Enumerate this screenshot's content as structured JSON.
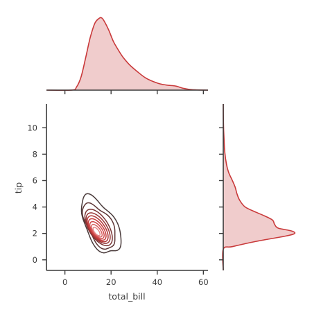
{
  "chart_data": {
    "type": "jointplot-kde",
    "xlabel": "total_bill",
    "ylabel": "tip",
    "xlim": [
      -8,
      62
    ],
    "ylim": [
      -0.8,
      11.8
    ],
    "x_ticks": [
      "0",
      "20",
      "40",
      "60"
    ],
    "y_ticks": [
      "0",
      "2",
      "4",
      "6",
      "8",
      "10"
    ],
    "colors": {
      "line": "#c9393a",
      "fill": "#f0cccc",
      "outer": "#5a3a3a",
      "axis": "#3a3a3a"
    },
    "joint": {
      "kind": "kde-contour",
      "levels": [
        {
          "level": 1,
          "cx": 15.5,
          "cy": 2.6,
          "rx": 10.5,
          "ry": 1.25,
          "angle": 28,
          "color": "#4a3b3b"
        },
        {
          "level": 2,
          "cx": 15.0,
          "cy": 2.55,
          "rx": 8.4,
          "ry": 1.0,
          "angle": 30,
          "color": "#5e3636"
        },
        {
          "level": 3,
          "cx": 14.6,
          "cy": 2.45,
          "rx": 6.9,
          "ry": 0.82,
          "angle": 32,
          "color": "#7b3636"
        },
        {
          "level": 4,
          "cx": 14.4,
          "cy": 2.4,
          "rx": 5.9,
          "ry": 0.7,
          "angle": 34,
          "color": "#983535"
        },
        {
          "level": 5,
          "cx": 14.2,
          "cy": 2.35,
          "rx": 5.0,
          "ry": 0.6,
          "angle": 35,
          "color": "#b23535"
        },
        {
          "level": 6,
          "cx": 14.0,
          "cy": 2.3,
          "rx": 4.2,
          "ry": 0.5,
          "angle": 36,
          "color": "#c53c3c"
        },
        {
          "level": 7,
          "cx": 13.9,
          "cy": 2.25,
          "rx": 3.3,
          "ry": 0.4,
          "angle": 37,
          "color": "#d04848"
        },
        {
          "level": 8,
          "cx": 13.8,
          "cy": 2.2,
          "rx": 2.4,
          "ry": 0.3,
          "angle": 38,
          "color": "#d96262"
        },
        {
          "level": 9,
          "cx": 13.7,
          "cy": 2.15,
          "rx": 1.5,
          "ry": 0.2,
          "angle": 38,
          "color": "#e48888"
        }
      ]
    },
    "marginal_x": {
      "x": [
        -8,
        3,
        5,
        7,
        9,
        11,
        13,
        15,
        16,
        17,
        19,
        21,
        23,
        25,
        28,
        31,
        35,
        40,
        44,
        48,
        51,
        55,
        62
      ],
      "density": [
        0,
        0.0001,
        0.003,
        0.013,
        0.032,
        0.052,
        0.066,
        0.071,
        0.071,
        0.068,
        0.059,
        0.048,
        0.04,
        0.033,
        0.025,
        0.019,
        0.012,
        0.007,
        0.005,
        0.004,
        0.002,
        0.0005,
        0
      ]
    },
    "marginal_y": {
      "y": [
        -0.8,
        0.8,
        1.0,
        1.4,
        1.8,
        2.0,
        2.2,
        2.4,
        2.7,
        3.0,
        3.3,
        3.6,
        4.0,
        4.5,
        5.0,
        5.5,
        6.0,
        6.6,
        7.2,
        8.2,
        9.2,
        10.4,
        11.8
      ],
      "density": [
        0,
        0.0,
        0.05,
        0.18,
        0.34,
        0.39,
        0.37,
        0.3,
        0.28,
        0.27,
        0.23,
        0.18,
        0.12,
        0.09,
        0.075,
        0.065,
        0.05,
        0.03,
        0.018,
        0.008,
        0.004,
        0.001,
        0
      ]
    }
  }
}
